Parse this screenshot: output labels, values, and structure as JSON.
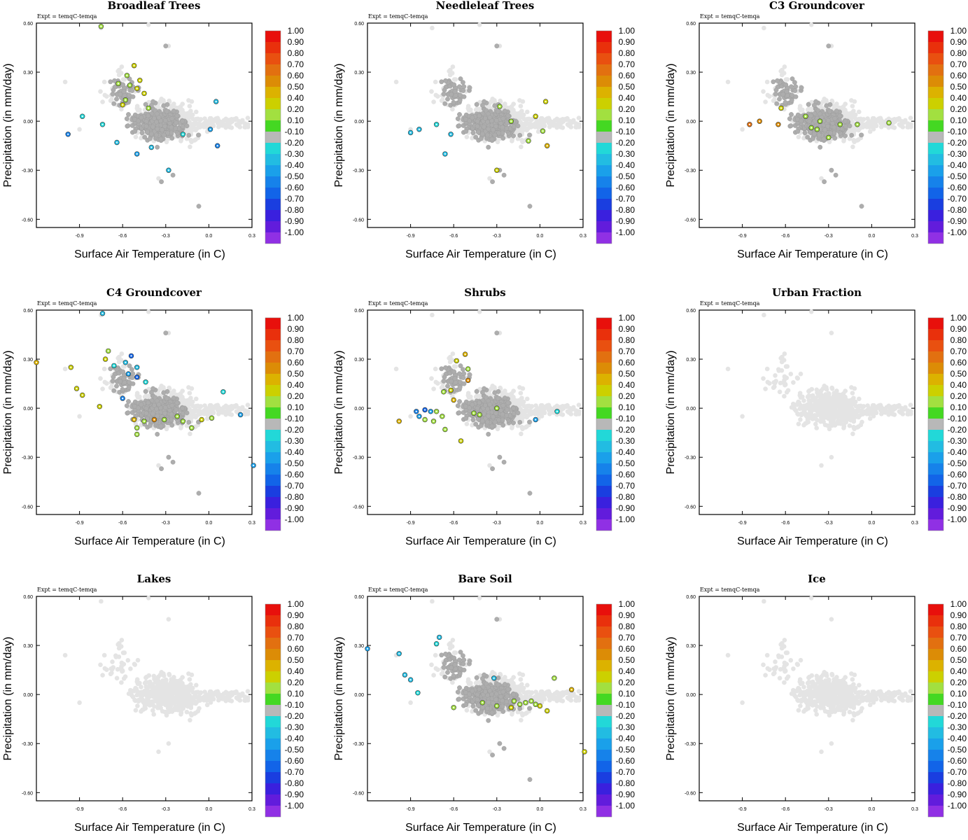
{
  "figure": {
    "expt_label": "Expt = temqC-temqa",
    "xlabel": "Surface Air Temperature (in C)",
    "ylabel": "Precipitation (in mm/day)",
    "xticks": [
      "-0.9",
      "-0.6",
      "-0.3",
      "0.0",
      "0.3"
    ],
    "yticks": [
      "0.60",
      "0.30",
      "0.00",
      "-0.30",
      "-0.60"
    ],
    "xlim": [
      -1.2,
      0.3
    ],
    "ylim": [
      -0.65,
      0.6
    ],
    "colorbar": {
      "labels": [
        "1.00",
        "0.90",
        "0.80",
        "0.70",
        "0.60",
        "0.50",
        "0.40",
        "0.20",
        "0.10",
        "-0.10",
        "-0.20",
        "-0.30",
        "-0.40",
        "-0.50",
        "-0.60",
        "-0.70",
        "-0.80",
        "-0.90",
        "-1.00"
      ],
      "colors": [
        "#e8100c",
        "#e9300c",
        "#e95010",
        "#e27010",
        "#dc8c06",
        "#dcb200",
        "#ccd000",
        "#a2e040",
        "#44d822",
        "#b8b8b8",
        "#22d8d8",
        "#22bce2",
        "#1aa0ea",
        "#1682ea",
        "#1264e8",
        "#1a3ee0",
        "#3a20de",
        "#621cdc",
        "#9030e4"
      ]
    },
    "background_color": "#e4e4e4",
    "neutral_color": "#adadad"
  },
  "chart_data": [
    {
      "type": "scatter",
      "title": "Broadleaf Trees",
      "colored_points": [
        {
          "x": -0.75,
          "y": 0.58,
          "v": 0.15
        },
        {
          "x": -0.52,
          "y": 0.34,
          "v": 0.35
        },
        {
          "x": -0.57,
          "y": 0.28,
          "v": 0.15
        },
        {
          "x": -0.63,
          "y": 0.23,
          "v": 0.15
        },
        {
          "x": -0.55,
          "y": 0.22,
          "v": 0.15
        },
        {
          "x": -0.5,
          "y": 0.2,
          "v": 0.3
        },
        {
          "x": -0.48,
          "y": 0.25,
          "v": 0.35
        },
        {
          "x": -0.45,
          "y": 0.17,
          "v": 0.3
        },
        {
          "x": -0.58,
          "y": 0.13,
          "v": 0.15
        },
        {
          "x": -0.6,
          "y": 0.1,
          "v": 0.35
        },
        {
          "x": -0.42,
          "y": 0.08,
          "v": 0.15
        },
        {
          "x": -0.98,
          "y": -0.08,
          "v": -0.55
        },
        {
          "x": -0.88,
          "y": 0.03,
          "v": -0.25
        },
        {
          "x": -0.74,
          "y": -0.02,
          "v": -0.25
        },
        {
          "x": -0.64,
          "y": -0.13,
          "v": -0.35
        },
        {
          "x": -0.5,
          "y": -0.2,
          "v": -0.45
        },
        {
          "x": -0.4,
          "y": -0.16,
          "v": -0.3
        },
        {
          "x": -0.28,
          "y": -0.3,
          "v": -0.35
        },
        {
          "x": 0.05,
          "y": 0.12,
          "v": -0.35
        },
        {
          "x": 0.01,
          "y": -0.05,
          "v": -0.4
        },
        {
          "x": 0.06,
          "y": -0.15,
          "v": -0.55
        },
        {
          "x": -0.18,
          "y": -0.08,
          "v": -0.25
        }
      ]
    },
    {
      "type": "scatter",
      "title": "Needleleaf Trees",
      "colored_points": [
        {
          "x": -0.28,
          "y": 0.09,
          "v": 0.15
        },
        {
          "x": -0.2,
          "y": 0.0,
          "v": 0.15
        },
        {
          "x": 0.04,
          "y": 0.12,
          "v": 0.35
        },
        {
          "x": -0.03,
          "y": 0.03,
          "v": 0.3
        },
        {
          "x": -0.08,
          "y": -0.12,
          "v": 0.15
        },
        {
          "x": 0.02,
          "y": -0.06,
          "v": 0.15
        },
        {
          "x": 0.05,
          "y": -0.15,
          "v": 0.45
        },
        {
          "x": -0.3,
          "y": -0.3,
          "v": 0.35
        },
        {
          "x": -0.9,
          "y": -0.07,
          "v": -0.3
        },
        {
          "x": -0.84,
          "y": -0.05,
          "v": -0.3
        },
        {
          "x": -0.72,
          "y": -0.02,
          "v": -0.25
        },
        {
          "x": -0.66,
          "y": -0.2,
          "v": -0.35
        },
        {
          "x": -0.62,
          "y": -0.08,
          "v": -0.3
        }
      ]
    },
    {
      "type": "scatter",
      "title": "C3 Groundcover",
      "colored_points": [
        {
          "x": -0.85,
          "y": -0.02,
          "v": 0.65
        },
        {
          "x": -0.78,
          "y": 0.0,
          "v": 0.6
        },
        {
          "x": -0.65,
          "y": -0.02,
          "v": 0.55
        },
        {
          "x": -0.63,
          "y": 0.08,
          "v": 0.35
        },
        {
          "x": -0.46,
          "y": 0.03,
          "v": 0.15
        },
        {
          "x": -0.42,
          "y": -0.04,
          "v": 0.15
        },
        {
          "x": -0.38,
          "y": -0.05,
          "v": 0.15
        },
        {
          "x": -0.36,
          "y": 0.0,
          "v": 0.15
        },
        {
          "x": -0.3,
          "y": -0.1,
          "v": 0.15
        },
        {
          "x": -0.22,
          "y": -0.02,
          "v": 0.15
        },
        {
          "x": -0.1,
          "y": -0.02,
          "v": 0.15
        },
        {
          "x": 0.12,
          "y": -0.01,
          "v": 0.15
        }
      ]
    },
    {
      "type": "scatter",
      "title": "C4 Groundcover",
      "colored_points": [
        {
          "x": -1.2,
          "y": 0.28,
          "v": 0.5
        },
        {
          "x": -0.96,
          "y": 0.25,
          "v": 0.35
        },
        {
          "x": -0.92,
          "y": 0.12,
          "v": 0.35
        },
        {
          "x": -0.88,
          "y": 0.08,
          "v": 0.35
        },
        {
          "x": -0.76,
          "y": 0.01,
          "v": 0.35
        },
        {
          "x": -0.74,
          "y": 0.58,
          "v": -0.3
        },
        {
          "x": -0.7,
          "y": 0.35,
          "v": 0.15
        },
        {
          "x": -0.72,
          "y": 0.3,
          "v": 0.35
        },
        {
          "x": -0.66,
          "y": 0.26,
          "v": -0.25
        },
        {
          "x": -0.58,
          "y": 0.28,
          "v": -0.35
        },
        {
          "x": -0.54,
          "y": 0.32,
          "v": -0.65
        },
        {
          "x": -0.5,
          "y": 0.25,
          "v": -0.35
        },
        {
          "x": -0.56,
          "y": 0.21,
          "v": -0.45
        },
        {
          "x": -0.5,
          "y": 0.19,
          "v": -0.65
        },
        {
          "x": -0.44,
          "y": 0.16,
          "v": -0.25
        },
        {
          "x": -0.6,
          "y": 0.06,
          "v": -0.55
        },
        {
          "x": -0.52,
          "y": -0.07,
          "v": 0.45
        },
        {
          "x": -0.45,
          "y": -0.08,
          "v": 0.15
        },
        {
          "x": -0.38,
          "y": -0.07,
          "v": 0.55
        },
        {
          "x": -0.31,
          "y": -0.07,
          "v": 0.15
        },
        {
          "x": -0.22,
          "y": -0.05,
          "v": 0.15
        },
        {
          "x": -0.18,
          "y": -0.08,
          "v": 0.15
        },
        {
          "x": -0.12,
          "y": -0.12,
          "v": 0.15
        },
        {
          "x": -0.05,
          "y": -0.07,
          "v": 0.35
        },
        {
          "x": -0.5,
          "y": -0.12,
          "v": 0.15
        },
        {
          "x": -0.5,
          "y": -0.16,
          "v": 0.15
        },
        {
          "x": 0.02,
          "y": -0.06,
          "v": 0.15
        },
        {
          "x": 0.1,
          "y": 0.1,
          "v": -0.25
        },
        {
          "x": 0.22,
          "y": -0.04,
          "v": -0.4
        },
        {
          "x": 0.31,
          "y": -0.35,
          "v": -0.4
        }
      ]
    },
    {
      "type": "scatter",
      "title": "Shrubs",
      "colored_points": [
        {
          "x": -0.52,
          "y": 0.33,
          "v": 0.45
        },
        {
          "x": -0.58,
          "y": 0.29,
          "v": 0.35
        },
        {
          "x": -0.5,
          "y": 0.24,
          "v": 0.15
        },
        {
          "x": -0.5,
          "y": 0.17,
          "v": 0.55
        },
        {
          "x": -0.62,
          "y": 0.11,
          "v": 0.35
        },
        {
          "x": -0.67,
          "y": 0.1,
          "v": 0.15
        },
        {
          "x": -0.6,
          "y": 0.05,
          "v": 0.45
        },
        {
          "x": -0.98,
          "y": -0.08,
          "v": 0.45
        },
        {
          "x": -0.86,
          "y": -0.02,
          "v": -0.55
        },
        {
          "x": -0.84,
          "y": -0.05,
          "v": -0.45
        },
        {
          "x": -0.8,
          "y": -0.01,
          "v": -0.65
        },
        {
          "x": -0.76,
          "y": -0.02,
          "v": -0.45
        },
        {
          "x": -0.8,
          "y": -0.07,
          "v": 0.15
        },
        {
          "x": -0.74,
          "y": -0.08,
          "v": 0.15
        },
        {
          "x": -0.72,
          "y": -0.02,
          "v": 0.15
        },
        {
          "x": -0.68,
          "y": -0.05,
          "v": 0.15
        },
        {
          "x": -0.66,
          "y": -0.13,
          "v": 0.15
        },
        {
          "x": -0.55,
          "y": -0.2,
          "v": 0.4
        },
        {
          "x": -0.46,
          "y": -0.03,
          "v": 0.15
        },
        {
          "x": -0.42,
          "y": -0.04,
          "v": 0.15
        },
        {
          "x": -0.3,
          "y": 0.0,
          "v": 0.15
        },
        {
          "x": -0.03,
          "y": -0.07,
          "v": -0.45
        },
        {
          "x": 0.12,
          "y": -0.02,
          "v": -0.25
        }
      ]
    },
    {
      "type": "scatter",
      "title": "Urban Fraction",
      "colored_points": []
    },
    {
      "type": "scatter",
      "title": "Lakes",
      "colored_points": []
    },
    {
      "type": "scatter",
      "title": "Bare Soil",
      "colored_points": [
        {
          "x": -1.2,
          "y": 0.28,
          "v": -0.45
        },
        {
          "x": -0.98,
          "y": 0.25,
          "v": -0.3
        },
        {
          "x": -0.94,
          "y": 0.12,
          "v": -0.3
        },
        {
          "x": -0.9,
          "y": 0.09,
          "v": -0.3
        },
        {
          "x": -0.85,
          "y": 0.01,
          "v": -0.25
        },
        {
          "x": -0.7,
          "y": 0.35,
          "v": -0.3
        },
        {
          "x": -0.72,
          "y": 0.31,
          "v": -0.25
        },
        {
          "x": -0.32,
          "y": 0.1,
          "v": -0.3
        },
        {
          "x": -0.6,
          "y": -0.08,
          "v": 0.15
        },
        {
          "x": -0.4,
          "y": -0.05,
          "v": 0.15
        },
        {
          "x": -0.3,
          "y": -0.07,
          "v": 0.15
        },
        {
          "x": -0.2,
          "y": -0.08,
          "v": 0.25
        },
        {
          "x": -0.18,
          "y": -0.04,
          "v": 0.15
        },
        {
          "x": -0.14,
          "y": -0.06,
          "v": 0.15
        },
        {
          "x": -0.1,
          "y": -0.05,
          "v": 0.15
        },
        {
          "x": -0.06,
          "y": -0.04,
          "v": 0.15
        },
        {
          "x": -0.03,
          "y": -0.06,
          "v": 0.15
        },
        {
          "x": 0.0,
          "y": -0.07,
          "v": 0.25
        },
        {
          "x": 0.05,
          "y": -0.1,
          "v": 0.35
        },
        {
          "x": 0.1,
          "y": 0.1,
          "v": 0.15
        },
        {
          "x": 0.22,
          "y": 0.03,
          "v": 0.45
        },
        {
          "x": 0.31,
          "y": -0.35,
          "v": 0.35
        }
      ]
    },
    {
      "type": "scatter",
      "title": "Ice",
      "colored_points": []
    }
  ]
}
